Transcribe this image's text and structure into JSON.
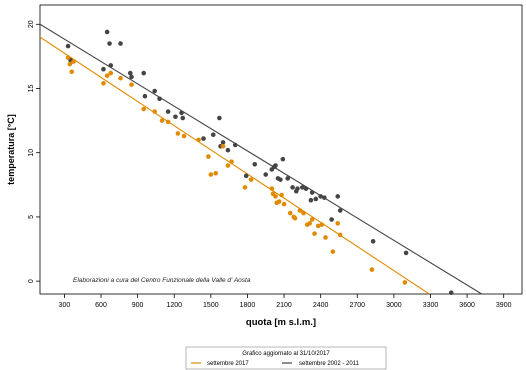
{
  "chart_data": {
    "type": "scatter",
    "title": "",
    "xlabel": "quota [m s.l.m.]",
    "ylabel": "temperatura [°C]",
    "xlim": [
      100,
      4050
    ],
    "ylim": [
      -1.0,
      21.5
    ],
    "xticks": [
      300,
      600,
      900,
      1200,
      1500,
      1800,
      2100,
      2400,
      2700,
      3000,
      3300,
      3600,
      3900
    ],
    "yticks": [
      0,
      5,
      10,
      15,
      20
    ],
    "grid": false,
    "annotation": "Elaborazioni a cura del Centro Funzionale della Valle d' Aosta",
    "legend": {
      "title": "Grafico aggiornato al 31/10/2017",
      "placement": "bottom-center",
      "entries": [
        "settembre 2017",
        "settembre 2002 - 2011"
      ]
    },
    "series": [
      {
        "name": "settembre 2017",
        "color": "#e08a00",
        "points": [
          [
            330,
            17.4
          ],
          [
            345,
            16.9
          ],
          [
            360,
            16.3
          ],
          [
            375,
            17.1
          ],
          [
            620,
            15.4
          ],
          [
            650,
            16.0
          ],
          [
            680,
            16.2
          ],
          [
            760,
            15.8
          ],
          [
            850,
            15.3
          ],
          [
            950,
            13.4
          ],
          [
            1040,
            13.2
          ],
          [
            1100,
            12.5
          ],
          [
            1150,
            12.4
          ],
          [
            1230,
            11.5
          ],
          [
            1280,
            11.3
          ],
          [
            1400,
            11.0
          ],
          [
            1480,
            9.7
          ],
          [
            1500,
            8.3
          ],
          [
            1540,
            8.4
          ],
          [
            1600,
            10.5
          ],
          [
            1640,
            9.0
          ],
          [
            1670,
            9.3
          ],
          [
            1780,
            7.3
          ],
          [
            1830,
            7.9
          ],
          [
            2000,
            7.2
          ],
          [
            2010,
            6.8
          ],
          [
            2030,
            6.6
          ],
          [
            2040,
            6.1
          ],
          [
            2060,
            6.2
          ],
          [
            2080,
            6.7
          ],
          [
            2100,
            6.0
          ],
          [
            2150,
            5.3
          ],
          [
            2180,
            5.0
          ],
          [
            2190,
            4.9
          ],
          [
            2230,
            5.5
          ],
          [
            2260,
            5.3
          ],
          [
            2290,
            4.4
          ],
          [
            2310,
            4.5
          ],
          [
            2330,
            4.8
          ],
          [
            2350,
            3.7
          ],
          [
            2380,
            4.3
          ],
          [
            2410,
            4.4
          ],
          [
            2440,
            3.4
          ],
          [
            2500,
            2.3
          ],
          [
            2540,
            4.5
          ],
          [
            2560,
            3.6
          ],
          [
            2820,
            0.9
          ],
          [
            3090,
            -0.1
          ]
        ],
        "fit": [
          [
            100,
            19.0
          ],
          [
            3290,
            -1.0
          ]
        ]
      },
      {
        "name": "settembre 2002 - 2011",
        "color": "#444444",
        "points": [
          [
            330,
            18.3
          ],
          [
            350,
            17.2
          ],
          [
            360,
            17.1
          ],
          [
            620,
            16.5
          ],
          [
            650,
            19.4
          ],
          [
            670,
            18.5
          ],
          [
            680,
            16.8
          ],
          [
            760,
            18.5
          ],
          [
            840,
            16.2
          ],
          [
            850,
            15.9
          ],
          [
            950,
            16.2
          ],
          [
            960,
            14.4
          ],
          [
            1040,
            14.8
          ],
          [
            1080,
            14.2
          ],
          [
            1150,
            13.2
          ],
          [
            1210,
            12.8
          ],
          [
            1260,
            13.1
          ],
          [
            1270,
            12.7
          ],
          [
            1440,
            11.1
          ],
          [
            1520,
            11.4
          ],
          [
            1570,
            12.7
          ],
          [
            1580,
            10.5
          ],
          [
            1600,
            10.8
          ],
          [
            1640,
            10.2
          ],
          [
            1700,
            10.6
          ],
          [
            1790,
            8.2
          ],
          [
            1860,
            9.1
          ],
          [
            1950,
            8.3
          ],
          [
            2000,
            8.7
          ],
          [
            2020,
            8.9
          ],
          [
            2030,
            9.0
          ],
          [
            2050,
            8.0
          ],
          [
            2070,
            7.9
          ],
          [
            2090,
            9.5
          ],
          [
            2130,
            8.0
          ],
          [
            2170,
            7.3
          ],
          [
            2200,
            7.0
          ],
          [
            2210,
            7.2
          ],
          [
            2250,
            7.3
          ],
          [
            2280,
            7.2
          ],
          [
            2320,
            6.3
          ],
          [
            2330,
            6.9
          ],
          [
            2360,
            6.4
          ],
          [
            2400,
            6.6
          ],
          [
            2430,
            6.5
          ],
          [
            2490,
            4.8
          ],
          [
            2540,
            6.6
          ],
          [
            2560,
            5.5
          ],
          [
            2830,
            3.1
          ],
          [
            3100,
            2.2
          ],
          [
            3470,
            -0.9
          ]
        ],
        "fit": [
          [
            100,
            20.0
          ],
          [
            3720,
            -1.0
          ]
        ]
      }
    ]
  }
}
